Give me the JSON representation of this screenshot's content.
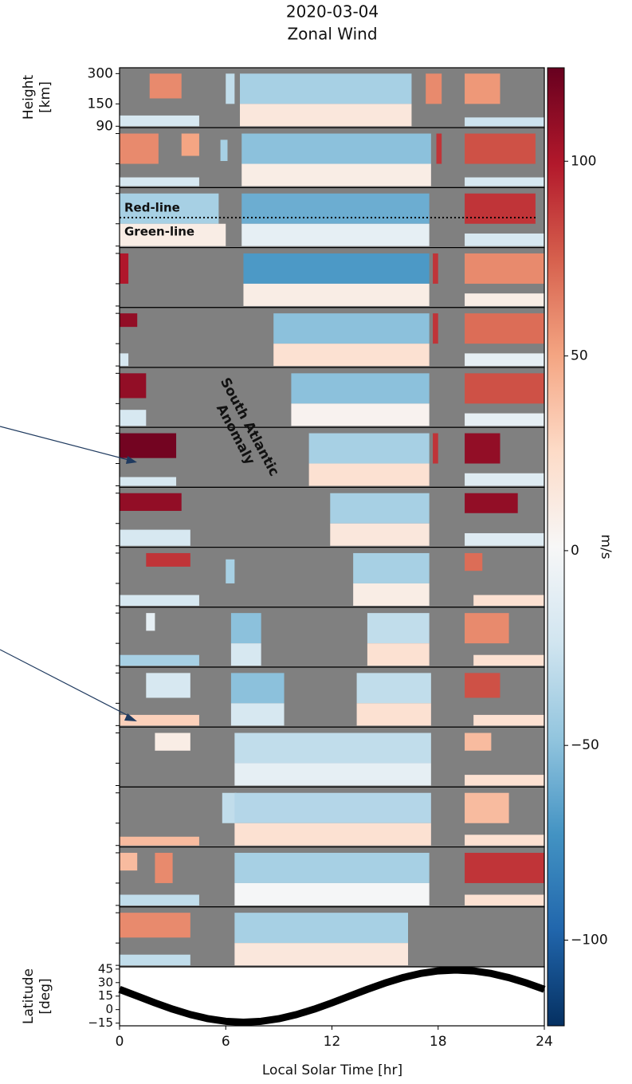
{
  "chart_data": [
    {
      "type": "heatmap",
      "title": "2020-03-04",
      "subtitle": "Zonal Wind",
      "ylabel": [
        "Height",
        "[km]"
      ],
      "yscale": "log",
      "ylim": [
        87,
        343
      ],
      "yticks": [
        300,
        150,
        90
      ],
      "xlim": [
        0,
        24
      ],
      "colormap": "RdBu_r",
      "empty_color": "#808080",
      "clim": [
        -122,
        124
      ],
      "clabel": "m/s",
      "cticks": [
        {
          "value": -100,
          "label": "−100"
        },
        {
          "value": -50,
          "label": "−50"
        },
        0,
        50,
        100
      ],
      "annotations": [
        "Red-line",
        "Green-line",
        "South Atlantic",
        "Anomaly"
      ],
      "panels": [
        [
          [
            1.7,
            3.5,
            170,
            300,
            60
          ],
          [
            0,
            4.5,
            90,
            115,
            -20
          ],
          [
            6.0,
            6.5,
            150,
            300,
            -30
          ],
          [
            6.8,
            16.5,
            150,
            300,
            -40
          ],
          [
            6.8,
            16.5,
            90,
            150,
            15
          ],
          [
            17.3,
            18.2,
            150,
            300,
            60
          ],
          [
            19.5,
            21.5,
            150,
            300,
            55
          ],
          [
            19.5,
            24,
            90,
            110,
            -25
          ]
        ],
        [
          [
            0,
            2.2,
            150,
            300,
            60
          ],
          [
            3.5,
            4.5,
            180,
            300,
            50
          ],
          [
            0,
            4.5,
            90,
            110,
            -20
          ],
          [
            5.7,
            6.1,
            160,
            260,
            -40
          ],
          [
            6.9,
            17.6,
            150,
            300,
            -50
          ],
          [
            6.9,
            17.6,
            90,
            150,
            10
          ],
          [
            17.9,
            18.2,
            150,
            300,
            90
          ],
          [
            19.5,
            23.5,
            150,
            300,
            80
          ],
          [
            19.5,
            24,
            90,
            110,
            -20
          ]
        ],
        [
          [
            0,
            5.6,
            150,
            300,
            -40
          ],
          [
            0,
            6,
            90,
            150,
            10
          ],
          [
            6.9,
            17.5,
            150,
            300,
            -60
          ],
          [
            6.9,
            17.5,
            90,
            150,
            -10
          ],
          [
            19.5,
            23.5,
            150,
            300,
            90
          ],
          [
            19.5,
            24,
            90,
            120,
            -20
          ]
        ],
        [
          [
            0,
            0.5,
            150,
            300,
            100
          ],
          [
            7,
            17.5,
            150,
            300,
            -70
          ],
          [
            7,
            17.5,
            90,
            150,
            10
          ],
          [
            17.7,
            18,
            150,
            300,
            90
          ],
          [
            19.5,
            24,
            150,
            300,
            60
          ],
          [
            19.5,
            24,
            90,
            120,
            10
          ]
        ],
        [
          [
            0,
            1,
            220,
            300,
            110
          ],
          [
            0,
            0.5,
            90,
            120,
            -20
          ],
          [
            8.7,
            17.5,
            150,
            300,
            -50
          ],
          [
            8.7,
            17.5,
            90,
            150,
            20
          ],
          [
            17.7,
            18,
            150,
            300,
            90
          ],
          [
            19.5,
            24,
            150,
            300,
            70
          ],
          [
            19.5,
            24,
            90,
            120,
            -10
          ]
        ],
        [
          [
            0,
            1.5,
            170,
            300,
            110
          ],
          [
            0,
            1.5,
            90,
            130,
            -20
          ],
          [
            9.7,
            17.5,
            150,
            300,
            -50
          ],
          [
            9.7,
            17.5,
            90,
            150,
            5
          ],
          [
            19.5,
            24,
            150,
            300,
            80
          ],
          [
            19.5,
            24,
            90,
            120,
            -10
          ]
        ],
        [
          [
            0,
            3.2,
            170,
            300,
            120
          ],
          [
            0,
            3.2,
            90,
            110,
            -20
          ],
          [
            10.7,
            17.5,
            150,
            300,
            -40
          ],
          [
            10.7,
            17.5,
            90,
            150,
            20
          ],
          [
            17.7,
            18,
            150,
            300,
            90
          ],
          [
            19.5,
            21.5,
            150,
            300,
            110
          ],
          [
            19.5,
            24,
            90,
            120,
            -15
          ]
        ],
        [
          [
            0,
            3.5,
            200,
            300,
            110
          ],
          [
            0,
            4,
            90,
            130,
            -20
          ],
          [
            11.9,
            17.5,
            150,
            300,
            -40
          ],
          [
            11.9,
            17.5,
            90,
            150,
            15
          ],
          [
            19.5,
            22.5,
            190,
            300,
            110
          ],
          [
            19.5,
            24,
            90,
            120,
            -15
          ]
        ],
        [
          [
            1.5,
            4,
            220,
            300,
            90
          ],
          [
            6,
            6.5,
            150,
            260,
            -40
          ],
          [
            13.2,
            17.5,
            150,
            300,
            -40
          ],
          [
            13.2,
            17.5,
            90,
            150,
            10
          ],
          [
            19.5,
            20.5,
            200,
            300,
            70
          ],
          [
            0,
            4.5,
            90,
            115,
            -20
          ],
          [
            20,
            24,
            90,
            115,
            20
          ]
        ],
        [
          [
            1.5,
            2,
            200,
            300,
            -10
          ],
          [
            6.3,
            8,
            150,
            300,
            -50
          ],
          [
            6.3,
            8,
            90,
            150,
            -20
          ],
          [
            14,
            17.5,
            150,
            300,
            -30
          ],
          [
            14,
            17.5,
            90,
            150,
            20
          ],
          [
            19.5,
            22,
            150,
            300,
            60
          ],
          [
            0,
            4.5,
            90,
            115,
            -40
          ],
          [
            20,
            24,
            90,
            115,
            20
          ]
        ],
        [
          [
            1.5,
            4,
            170,
            300,
            -20
          ],
          [
            6.3,
            9.3,
            150,
            300,
            -50
          ],
          [
            6.3,
            9.3,
            90,
            150,
            -20
          ],
          [
            13.4,
            17.6,
            150,
            300,
            -30
          ],
          [
            13.4,
            17.6,
            90,
            150,
            20
          ],
          [
            19.5,
            21.5,
            170,
            300,
            80
          ],
          [
            0,
            4.5,
            90,
            115,
            30
          ],
          [
            20,
            24,
            90,
            115,
            20
          ]
        ],
        [
          [
            2,
            4,
            200,
            300,
            10
          ],
          [
            6.5,
            17.6,
            150,
            300,
            -30
          ],
          [
            6.5,
            17.6,
            90,
            150,
            -10
          ],
          [
            19.5,
            21,
            200,
            300,
            40
          ],
          [
            19.5,
            24,
            90,
            115,
            20
          ]
        ],
        [
          [
            5.8,
            6.6,
            150,
            300,
            -30
          ],
          [
            6.5,
            17.6,
            150,
            300,
            -35
          ],
          [
            6.5,
            17.6,
            90,
            150,
            20
          ],
          [
            19.5,
            22,
            150,
            300,
            40
          ],
          [
            0,
            4.5,
            90,
            110,
            40
          ],
          [
            19.5,
            24,
            90,
            115,
            20
          ]
        ],
        [
          [
            0,
            1,
            200,
            300,
            40
          ],
          [
            2,
            3,
            150,
            300,
            60
          ],
          [
            6.5,
            17.5,
            150,
            300,
            -40
          ],
          [
            6.5,
            17.5,
            90,
            150,
            0
          ],
          [
            19.5,
            24,
            150,
            300,
            90
          ],
          [
            0,
            4.5,
            90,
            115,
            -30
          ],
          [
            19.5,
            24,
            90,
            115,
            20
          ]
        ],
        [
          [
            0,
            4,
            170,
            300,
            60
          ],
          [
            0,
            4,
            90,
            115,
            -30
          ],
          [
            6.5,
            16.3,
            150,
            300,
            -40
          ],
          [
            6.5,
            16.3,
            90,
            150,
            15
          ]
        ]
      ]
    },
    {
      "type": "line",
      "xlabel": "Local Solar Time [hr]",
      "ylabel": [
        "Latitude",
        "[deg]"
      ],
      "x": [
        0,
        1,
        2,
        3,
        4,
        5,
        6,
        7,
        8,
        9,
        10,
        11,
        12,
        13,
        14,
        15,
        16,
        17,
        18,
        19,
        20,
        21,
        22,
        23,
        24
      ],
      "series": [
        {
          "color": "#000000",
          "values": [
            22.5,
            15,
            7.5,
            0.5,
            -5.5,
            -10.1,
            -13,
            -14,
            -13,
            -10.1,
            -5.5,
            0.5,
            7.5,
            15,
            22.5,
            29.5,
            35.5,
            40.1,
            43,
            44,
            43,
            40.1,
            35.5,
            29.5,
            22.5
          ]
        }
      ],
      "xlim": [
        0,
        24
      ],
      "xticks": [
        0,
        6,
        12,
        18,
        24
      ],
      "ylim": [
        -18,
        47.5
      ],
      "yticks": [
        45,
        30,
        15,
        0,
        {
          "value": -15,
          "label": "−15"
        }
      ]
    }
  ]
}
